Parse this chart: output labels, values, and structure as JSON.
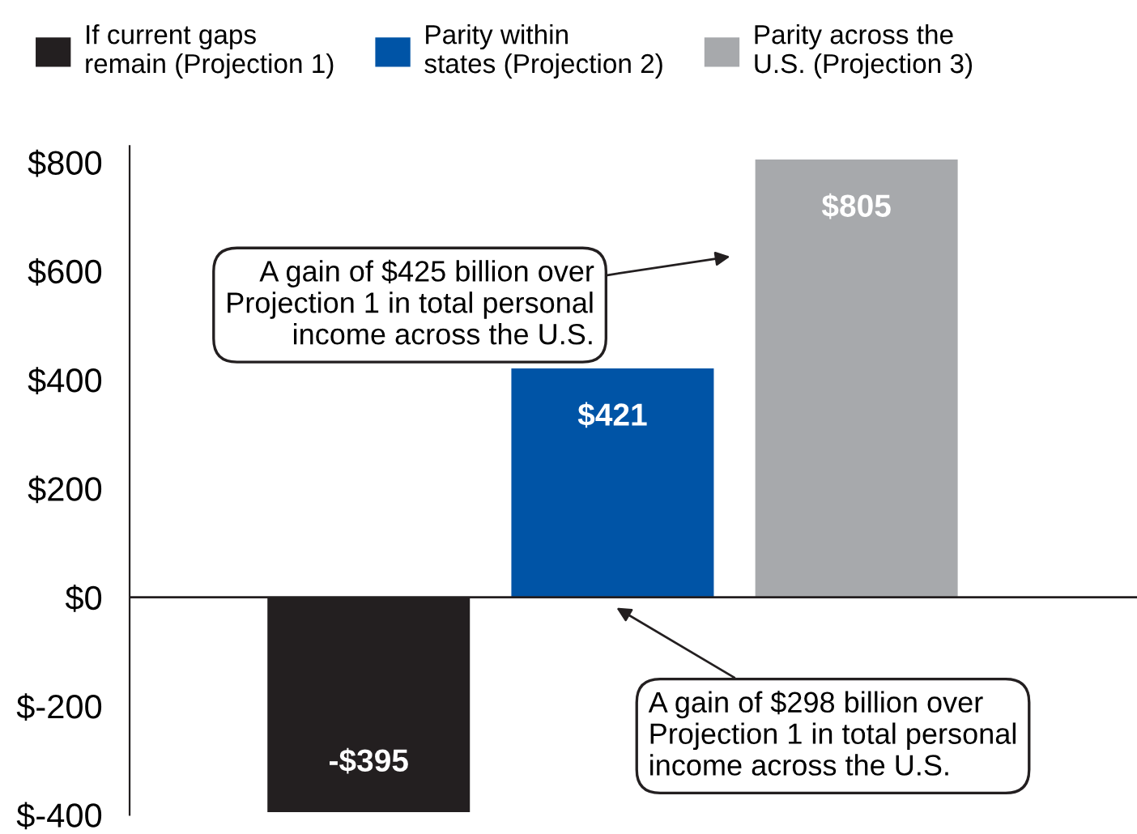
{
  "chart_data": {
    "type": "bar",
    "categories": [
      null,
      null,
      null
    ],
    "series": [
      {
        "name": "If current gaps\nremain (Projection 1)",
        "color": "#231f20",
        "values": [
          -395,
          null,
          null
        ],
        "value_labels": [
          "-$395",
          null,
          null
        ]
      },
      {
        "name": "Parity within\nstates (Projection 2)",
        "color": "#0054a6",
        "values": [
          null,
          421,
          null
        ],
        "value_labels": [
          null,
          "$421",
          null
        ]
      },
      {
        "name": "Parity across the\nU.S. (Projection 3)",
        "color": "#a7a9ac",
        "values": [
          null,
          null,
          805
        ],
        "value_labels": [
          null,
          null,
          "$805"
        ]
      }
    ],
    "ylim": [
      -400,
      830
    ],
    "yticks": [
      {
        "value": -400,
        "label": "$-400"
      },
      {
        "value": -200,
        "label": "$-200"
      },
      {
        "value": 0,
        "label": "$0"
      },
      {
        "value": 200,
        "label": "$200"
      },
      {
        "value": 400,
        "label": "$400"
      },
      {
        "value": 600,
        "label": "$600"
      },
      {
        "value": 800,
        "label": "$800"
      }
    ],
    "ref_lines": [
      {
        "axis": "y",
        "value": 0,
        "color": "#231f20"
      }
    ],
    "annotations": [
      "A gain of $425 billion over\nProjection 1 in total personal\nincome across the U.S.",
      "A gain of $298 billion over\nProjection 1 in total personal\nincome across the U.S."
    ],
    "tick_labels": "y",
    "legend": "top",
    "grid": false
  }
}
